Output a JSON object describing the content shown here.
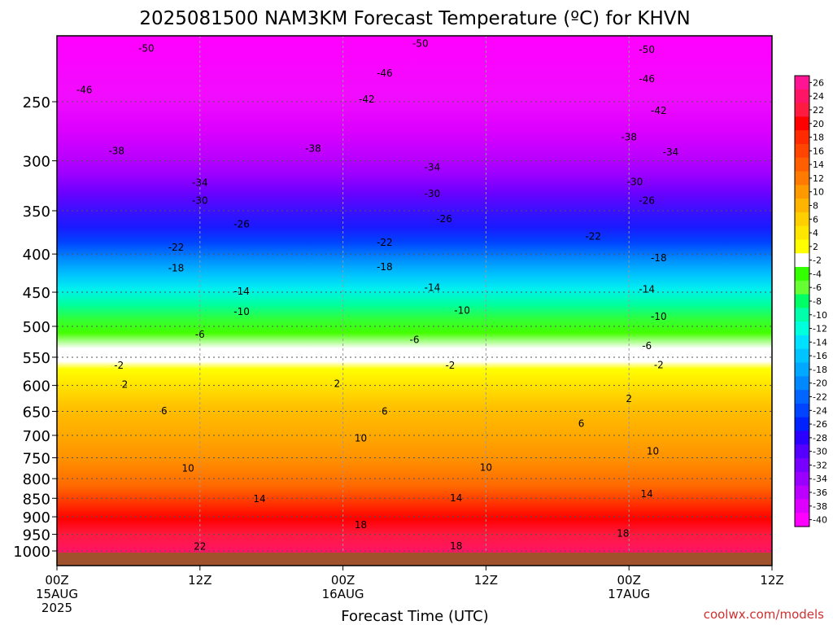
{
  "chart_data": {
    "type": "heatmap",
    "title": "2025081500 NAM3KM Forecast Temperature (ºC) for KHVN",
    "xlabel": "Forecast Time (UTC)",
    "ylabel": "",
    "credit": "coolwx.com/models",
    "y_axis": {
      "scale": "log-pressure",
      "range": [
        1050,
        200
      ],
      "ticks": [
        250,
        300,
        350,
        400,
        450,
        500,
        550,
        600,
        650,
        700,
        750,
        800,
        850,
        900,
        950,
        1000
      ]
    },
    "x_axis": {
      "range_hours": [
        0,
        60
      ],
      "ticks": [
        {
          "hour": 0,
          "lines": [
            "00Z",
            "15AUG",
            "2025"
          ]
        },
        {
          "hour": 12,
          "lines": [
            "12Z"
          ]
        },
        {
          "hour": 24,
          "lines": [
            "00Z",
            "16AUG"
          ]
        },
        {
          "hour": 36,
          "lines": [
            "12Z"
          ]
        },
        {
          "hour": 48,
          "lines": [
            "00Z",
            "17AUG"
          ]
        },
        {
          "hour": 60,
          "lines": [
            "12Z"
          ]
        }
      ]
    },
    "grid": true,
    "colorbar": {
      "position": "right",
      "levels": [
        26,
        24,
        22,
        20,
        18,
        16,
        14,
        12,
        10,
        8,
        6,
        4,
        2,
        -2,
        -4,
        -6,
        -8,
        -10,
        -12,
        -14,
        -16,
        -18,
        -20,
        -22,
        -24,
        -26,
        -28,
        -30,
        -32,
        -34,
        -36,
        -38,
        -40
      ],
      "colors": [
        "#ff1493",
        "#ff1466",
        "#ff1a40",
        "#ff0000",
        "#ff2a00",
        "#ff4500",
        "#ff5f00",
        "#ff7a00",
        "#ff9900",
        "#ffb400",
        "#ffcf00",
        "#ffe600",
        "#ffff00",
        "#ffffff",
        "#33ff00",
        "#66ff33",
        "#00ff66",
        "#00ffaa",
        "#00ffdd",
        "#00e0ff",
        "#00c4ff",
        "#00a8ff",
        "#0088ff",
        "#0066ff",
        "#0044ff",
        "#0022ff",
        "#2b00ff",
        "#5500ff",
        "#7700ff",
        "#9900ff",
        "#bb00ff",
        "#dd00ff",
        "#ff00ff"
      ]
    },
    "contour_labels": [
      {
        "hour": 7.5,
        "p": 212,
        "value": "-50"
      },
      {
        "hour": 30.5,
        "p": 209,
        "value": "-50"
      },
      {
        "hour": 49.5,
        "p": 213,
        "value": "-50"
      },
      {
        "hour": 2.3,
        "p": 241,
        "value": "-46"
      },
      {
        "hour": 27.5,
        "p": 229,
        "value": "-46"
      },
      {
        "hour": 49.5,
        "p": 233,
        "value": "-46"
      },
      {
        "hour": 26.0,
        "p": 248,
        "value": "-42"
      },
      {
        "hour": 50.5,
        "p": 257,
        "value": "-42"
      },
      {
        "hour": 5.0,
        "p": 291,
        "value": "-38"
      },
      {
        "hour": 21.5,
        "p": 289,
        "value": "-38"
      },
      {
        "hour": 48.0,
        "p": 279,
        "value": "-38"
      },
      {
        "hour": 51.5,
        "p": 292,
        "value": "-34"
      },
      {
        "hour": 12.0,
        "p": 321,
        "value": "-34"
      },
      {
        "hour": 31.5,
        "p": 306,
        "value": "-34"
      },
      {
        "hour": 12.0,
        "p": 339,
        "value": "-30"
      },
      {
        "hour": 31.5,
        "p": 332,
        "value": "-30"
      },
      {
        "hour": 48.5,
        "p": 320,
        "value": "-30"
      },
      {
        "hour": 15.5,
        "p": 365,
        "value": "-26"
      },
      {
        "hour": 32.5,
        "p": 359,
        "value": "-26"
      },
      {
        "hour": 49.5,
        "p": 339,
        "value": "-26"
      },
      {
        "hour": 10.0,
        "p": 392,
        "value": "-22"
      },
      {
        "hour": 27.5,
        "p": 386,
        "value": "-22"
      },
      {
        "hour": 45.0,
        "p": 379,
        "value": "-22"
      },
      {
        "hour": 10.0,
        "p": 418,
        "value": "-18"
      },
      {
        "hour": 27.5,
        "p": 416,
        "value": "-18"
      },
      {
        "hour": 50.5,
        "p": 405,
        "value": "-18"
      },
      {
        "hour": 15.5,
        "p": 449,
        "value": "-14"
      },
      {
        "hour": 31.5,
        "p": 444,
        "value": "-14"
      },
      {
        "hour": 49.5,
        "p": 446,
        "value": "-14"
      },
      {
        "hour": 15.5,
        "p": 478,
        "value": "-10"
      },
      {
        "hour": 34.0,
        "p": 476,
        "value": "-10"
      },
      {
        "hour": 50.5,
        "p": 485,
        "value": "-10"
      },
      {
        "hour": 12.0,
        "p": 513,
        "value": "-6"
      },
      {
        "hour": 30.0,
        "p": 521,
        "value": "-6"
      },
      {
        "hour": 49.5,
        "p": 531,
        "value": "-6"
      },
      {
        "hour": 5.2,
        "p": 564,
        "value": "-2"
      },
      {
        "hour": 33.0,
        "p": 564,
        "value": "-2"
      },
      {
        "hour": 50.5,
        "p": 563,
        "value": "-2"
      },
      {
        "hour": 5.7,
        "p": 598,
        "value": "2"
      },
      {
        "hour": 23.5,
        "p": 597,
        "value": "2"
      },
      {
        "hour": 48.0,
        "p": 625,
        "value": "2"
      },
      {
        "hour": 9.0,
        "p": 649,
        "value": "6"
      },
      {
        "hour": 27.5,
        "p": 650,
        "value": "6"
      },
      {
        "hour": 44.0,
        "p": 675,
        "value": "6"
      },
      {
        "hour": 25.5,
        "p": 706,
        "value": "10"
      },
      {
        "hour": 11.0,
        "p": 775,
        "value": "10"
      },
      {
        "hour": 36.0,
        "p": 773,
        "value": "10"
      },
      {
        "hour": 50.0,
        "p": 735,
        "value": "10"
      },
      {
        "hour": 17.0,
        "p": 851,
        "value": "14"
      },
      {
        "hour": 33.5,
        "p": 849,
        "value": "14"
      },
      {
        "hour": 49.5,
        "p": 839,
        "value": "14"
      },
      {
        "hour": 25.5,
        "p": 923,
        "value": "18"
      },
      {
        "hour": 33.5,
        "p": 985,
        "value": "18"
      },
      {
        "hour": 47.5,
        "p": 947,
        "value": "18"
      },
      {
        "hour": 12.0,
        "p": 986,
        "value": "22"
      }
    ]
  }
}
